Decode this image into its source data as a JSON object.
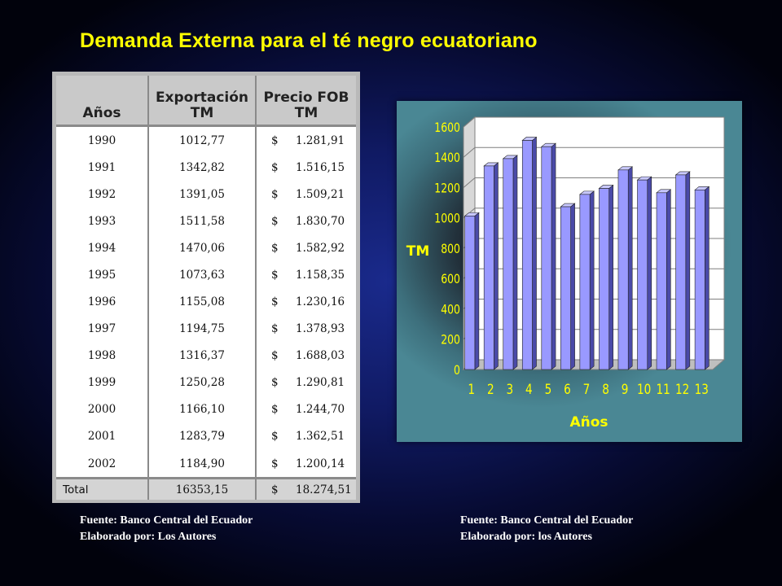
{
  "title": "Demanda Externa para el té negro ecuatoriano",
  "table": {
    "headers": {
      "year": "Años",
      "export_line1": "Exportación",
      "export_line2": "TM",
      "price_line1": "Precio FOB",
      "price_line2": "TM"
    },
    "rows": [
      {
        "year": "1990",
        "export": "1012,77",
        "currency": "$",
        "price": "1.281,91"
      },
      {
        "year": "1991",
        "export": "1342,82",
        "currency": "$",
        "price": "1.516,15"
      },
      {
        "year": "1992",
        "export": "1391,05",
        "currency": "$",
        "price": "1.509,21"
      },
      {
        "year": "1993",
        "export": "1511,58",
        "currency": "$",
        "price": "1.830,70"
      },
      {
        "year": "1994",
        "export": "1470,06",
        "currency": "$",
        "price": "1.582,92"
      },
      {
        "year": "1995",
        "export": "1073,63",
        "currency": "$",
        "price": "1.158,35"
      },
      {
        "year": "1996",
        "export": "1155,08",
        "currency": "$",
        "price": "1.230,16"
      },
      {
        "year": "1997",
        "export": "1194,75",
        "currency": "$",
        "price": "1.378,93"
      },
      {
        "year": "1998",
        "export": "1316,37",
        "currency": "$",
        "price": "1.688,03"
      },
      {
        "year": "1999",
        "export": "1250,28",
        "currency": "$",
        "price": "1.290,81"
      },
      {
        "year": "2000",
        "export": "1166,10",
        "currency": "$",
        "price": "1.244,70"
      },
      {
        "year": "2001",
        "export": "1283,79",
        "currency": "$",
        "price": "1.362,51"
      },
      {
        "year": "2002",
        "export": "1184,90",
        "currency": "$",
        "price": "1.200,14"
      }
    ],
    "total": {
      "label": "Total",
      "export": "16353,15",
      "currency": "$",
      "price": "18.274,51"
    }
  },
  "chart_data": {
    "type": "bar",
    "categories": [
      "1",
      "2",
      "3",
      "4",
      "5",
      "6",
      "7",
      "8",
      "9",
      "10",
      "11",
      "12",
      "13"
    ],
    "values": [
      1012.77,
      1342.82,
      1391.05,
      1511.58,
      1470.06,
      1073.63,
      1155.08,
      1194.75,
      1316.37,
      1250.28,
      1166.1,
      1283.79,
      1184.9
    ],
    "xlabel": "Años",
    "ylabel": "TM",
    "ylim": [
      0,
      1600
    ],
    "yticks": [
      0,
      200,
      400,
      600,
      800,
      1000,
      1200,
      1400,
      1600
    ],
    "grid": true,
    "style": "3d",
    "bar_color": "#9999ff",
    "label_color": "#ffff00"
  },
  "sources": {
    "left_line1": "Fuente: Banco Central del Ecuador",
    "left_line2": "Elaborado por: Los Autores",
    "right_line1": "Fuente: Banco Central del Ecuador",
    "right_line2": "Elaborado por: los Autores"
  }
}
